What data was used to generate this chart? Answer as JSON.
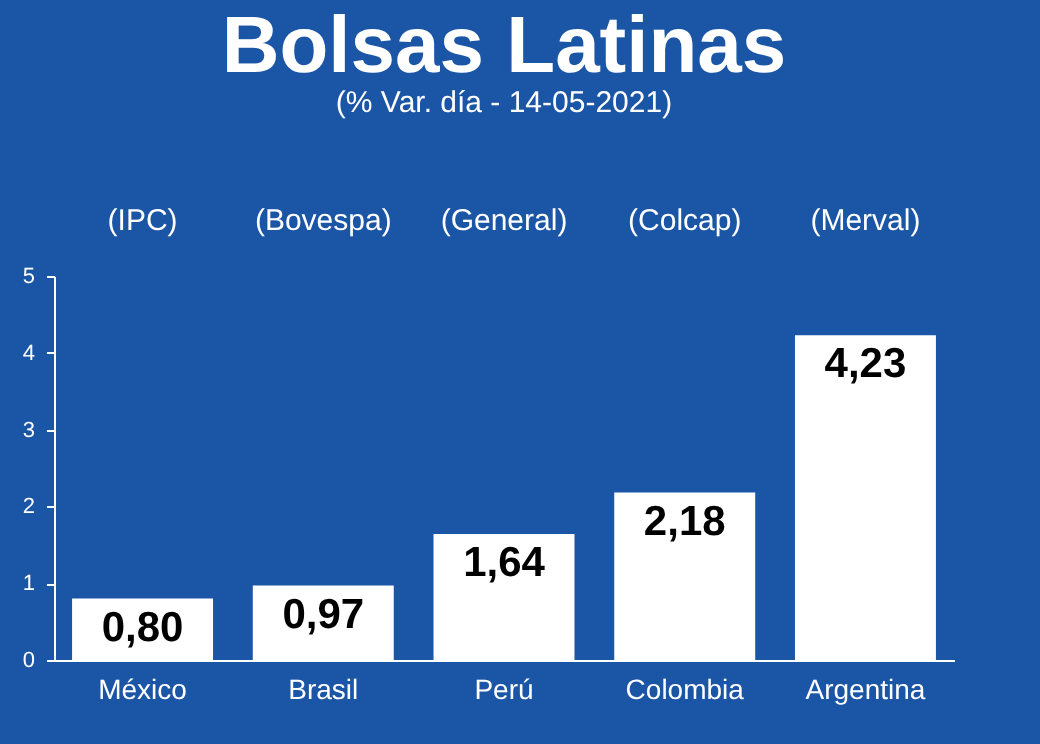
{
  "chart_data": {
    "type": "bar",
    "title": "Bolsas Latinas",
    "subtitle": "(% Var. día - 14-05-2021)",
    "categories": [
      "México",
      "Brasil",
      "Perú",
      "Colombia",
      "Argentina"
    ],
    "values": [
      0.8,
      0.97,
      1.64,
      2.18,
      4.23
    ],
    "color": "#ffffff",
    "ylim": [
      0,
      5
    ],
    "yticks": [
      0,
      1,
      2,
      3,
      4,
      5
    ],
    "grid": false,
    "value_labels": [
      "0,80",
      "0,97",
      "1,64",
      "2,18",
      "4,23"
    ],
    "annotations": [
      "(IPC)",
      "(Bovespa)",
      "(General)",
      "(Colcap)",
      "(Merval)"
    ]
  }
}
